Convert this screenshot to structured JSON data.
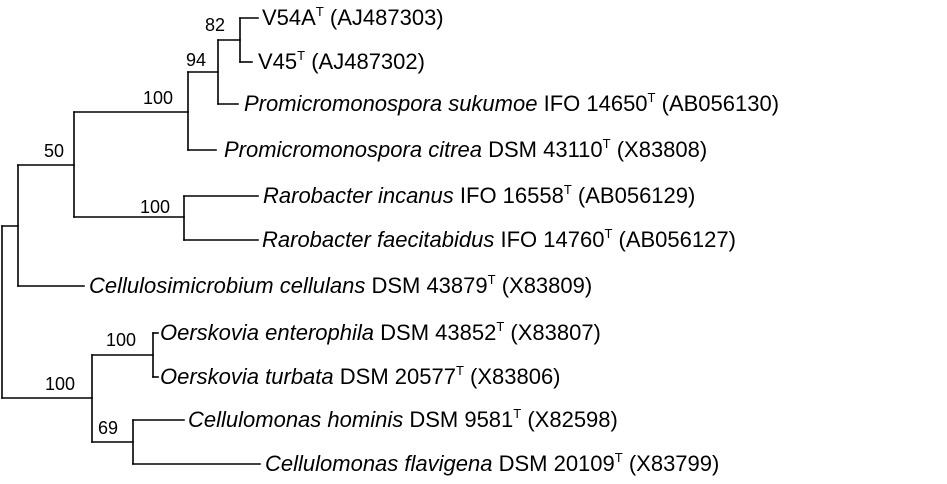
{
  "taxa": [
    {
      "id": "v54a",
      "italic": "",
      "name": "V54A",
      "sup": "T",
      "acc": " (AJ487303)"
    },
    {
      "id": "v45",
      "italic": "",
      "name": "V45",
      "sup": "T",
      "acc": " (AJ487302)"
    },
    {
      "id": "psuk",
      "italic": "Promicromonospora sukumoe",
      "name": " IFO 14650",
      "sup": "T",
      "acc": " (AB056130)"
    },
    {
      "id": "pcit",
      "italic": "Promicromonospora citrea",
      "name": " DSM 43110",
      "sup": "T",
      "acc": " (X83808)"
    },
    {
      "id": "rinc",
      "italic": "Rarobacter incanus",
      "name": " IFO 16558",
      "sup": "T",
      "acc": " (AB056129)"
    },
    {
      "id": "rfae",
      "italic": "Rarobacter faecitabidus",
      "name": " IFO 14760",
      "sup": "T",
      "acc": " (AB056127)"
    },
    {
      "id": "ccel",
      "italic": "Cellulosimicrobium cellulans",
      "name": " DSM 43879",
      "sup": "T",
      "acc": " (X83809)"
    },
    {
      "id": "oent",
      "italic": "Oerskovia enterophila",
      "name": " DSM 43852",
      "sup": "T",
      "acc": " (X83807)"
    },
    {
      "id": "otur",
      "italic": "Oerskovia turbata",
      "name": " DSM 20577",
      "sup": "T",
      "acc": " (X83806)"
    },
    {
      "id": "chom",
      "italic": "Cellulomonas hominis",
      "name": " DSM 9581",
      "sup": "T",
      "acc": " (X82598)"
    },
    {
      "id": "cfla",
      "italic": "Cellulomonas flavigena",
      "name": " DSM 20109",
      "sup": "T",
      "acc": " (X83799)"
    }
  ],
  "bootstrap": [
    {
      "id": "b82",
      "value": "82"
    },
    {
      "id": "b94",
      "value": "94"
    },
    {
      "id": "b100a",
      "value": "100"
    },
    {
      "id": "b50",
      "value": "50"
    },
    {
      "id": "b100b",
      "value": "100"
    },
    {
      "id": "b100c",
      "value": "100"
    },
    {
      "id": "b100d",
      "value": "100"
    },
    {
      "id": "b69",
      "value": "69"
    }
  ]
}
